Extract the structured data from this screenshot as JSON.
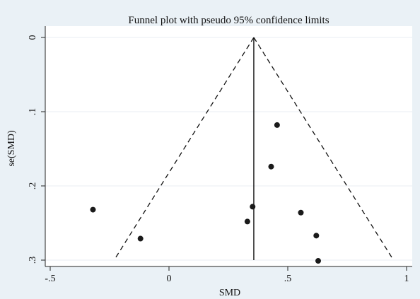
{
  "chart_data": {
    "type": "scatter",
    "title": "Funnel plot with pseudo 95% confidence limits",
    "xlabel": "SMD",
    "ylabel": "se(SMD)",
    "xlim": [
      -0.5,
      1.0
    ],
    "ylim": [
      0,
      0.3
    ],
    "y_reversed": true,
    "grid": "horizontal",
    "xticks": [
      -0.5,
      0,
      0.5,
      1
    ],
    "xtick_labels": [
      "-.5",
      "0",
      ".5",
      "1"
    ],
    "yticks": [
      0,
      0.1,
      0.2,
      0.3
    ],
    "ytick_labels": [
      "0",
      ".1",
      ".2",
      ".3"
    ],
    "pooled_estimate": 0.357,
    "points": [
      {
        "x": 0.455,
        "y": 0.118
      },
      {
        "x": 0.43,
        "y": 0.174
      },
      {
        "x": 0.352,
        "y": 0.228
      },
      {
        "x": -0.32,
        "y": 0.232
      },
      {
        "x": 0.555,
        "y": 0.236
      },
      {
        "x": 0.33,
        "y": 0.248
      },
      {
        "x": 0.62,
        "y": 0.267
      },
      {
        "x": -0.12,
        "y": 0.271
      },
      {
        "x": 0.628,
        "y": 0.301
      }
    ],
    "colors": {
      "background": "#eaf1f6",
      "plot_area": "#ffffff",
      "gridline": "#e9eef3",
      "marker": "#1a1a1a",
      "line": "#111111"
    }
  }
}
